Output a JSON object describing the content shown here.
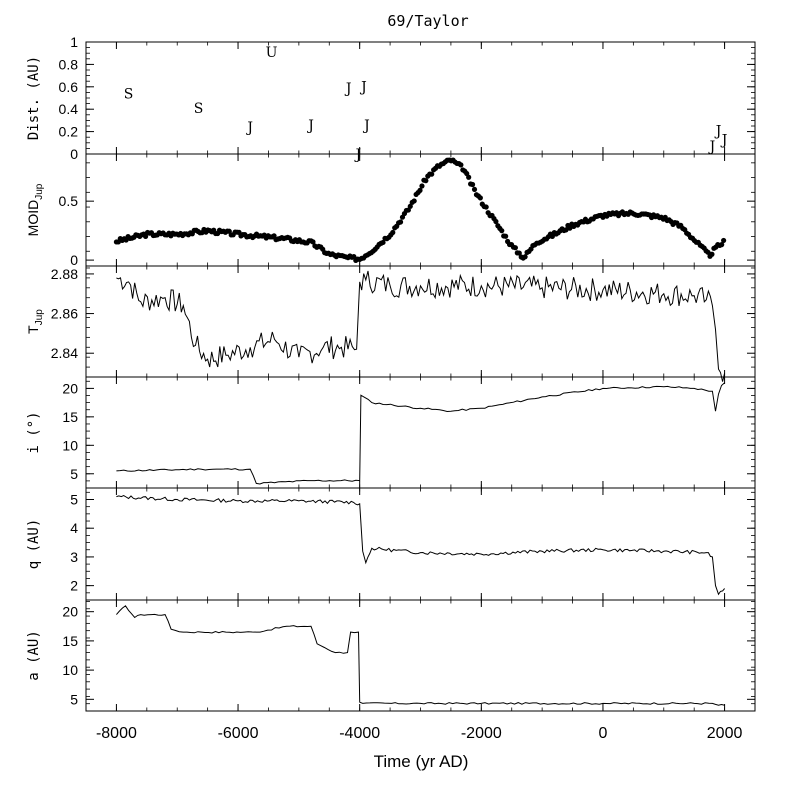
{
  "chart_data": {
    "type": "multi-panel",
    "title": "69/Taylor",
    "xlabel": "Time (yr AD)",
    "xlim": [
      -8500,
      2500
    ],
    "x_ticks": [
      -8000,
      -6000,
      -4000,
      -2000,
      0,
      2000
    ],
    "x_tick_labels": [
      "-8000",
      "-6000",
      "-4000",
      "-2000",
      "0",
      "2000"
    ],
    "panels": [
      {
        "id": "dist",
        "type": "scatter-text",
        "ylabel": "Dist. (AU)",
        "ylim": [
          0,
          1
        ],
        "y_ticks": [
          0,
          0.2,
          0.4,
          0.6,
          0.8,
          1
        ],
        "y_tick_labels": [
          "0",
          "0.2",
          "0.4",
          "0.6",
          "0.8",
          "1"
        ],
        "markers": [
          {
            "label": "S",
            "x": -7800,
            "y": 0.55
          },
          {
            "label": "S",
            "x": -6650,
            "y": 0.42
          },
          {
            "label": "U",
            "x": -5450,
            "y": 0.92
          },
          {
            "label": "J",
            "x": -5800,
            "y": 0.25
          },
          {
            "label": "J",
            "x": -4800,
            "y": 0.27
          },
          {
            "label": "J",
            "x": -4180,
            "y": 0.6
          },
          {
            "label": "J",
            "x": -3930,
            "y": 0.61
          },
          {
            "label": "J",
            "x": -3880,
            "y": 0.27
          },
          {
            "label": "J",
            "x": -4020,
            "y": 0.01
          },
          {
            "label": "J",
            "x": 1800,
            "y": 0.08
          },
          {
            "label": "J",
            "x": 1900,
            "y": 0.22
          },
          {
            "label": "J",
            "x": 2000,
            "y": 0.14
          }
        ]
      },
      {
        "id": "moid",
        "type": "scatter",
        "ylabel": "MOID",
        "ylabel_sub": "Jup",
        "ylim": [
          -0.05,
          0.9
        ],
        "y_ticks": [
          0,
          0.5
        ],
        "y_tick_labels": [
          "0",
          "0.5"
        ],
        "points": [
          [
            -8000,
            0.16
          ],
          [
            -7500,
            0.22
          ],
          [
            -7000,
            0.22
          ],
          [
            -6500,
            0.25
          ],
          [
            -6000,
            0.22
          ],
          [
            -5600,
            0.2
          ],
          [
            -5200,
            0.18
          ],
          [
            -4800,
            0.15
          ],
          [
            -4500,
            0.05
          ],
          [
            -4200,
            0.02
          ],
          [
            -4000,
            0.01
          ],
          [
            -3800,
            0.08
          ],
          [
            -3500,
            0.22
          ],
          [
            -3200,
            0.43
          ],
          [
            -2900,
            0.7
          ],
          [
            -2700,
            0.8
          ],
          [
            -2500,
            0.85
          ],
          [
            -2300,
            0.78
          ],
          [
            -2100,
            0.58
          ],
          [
            -1800,
            0.35
          ],
          [
            -1500,
            0.12
          ],
          [
            -1300,
            0.02
          ],
          [
            -1100,
            0.15
          ],
          [
            -800,
            0.22
          ],
          [
            -500,
            0.3
          ],
          [
            0,
            0.38
          ],
          [
            500,
            0.4
          ],
          [
            1000,
            0.36
          ],
          [
            1300,
            0.28
          ],
          [
            1600,
            0.12
          ],
          [
            1750,
            0.04
          ],
          [
            1850,
            0.1
          ],
          [
            2000,
            0.16
          ]
        ]
      },
      {
        "id": "tjup",
        "type": "line",
        "ylabel": "T",
        "ylabel_sub": "Jup",
        "ylim": [
          2.828,
          2.884
        ],
        "y_ticks": [
          2.84,
          2.86,
          2.88
        ],
        "y_tick_labels": [
          "2.84",
          "2.86",
          "2.88"
        ],
        "series": [
          {
            "x": [
              -8000,
              -7800,
              -7600,
              -7200,
              -6900,
              -6700,
              -6500,
              -6200,
              -5800,
              -5400,
              -5000,
              -4600,
              -4300,
              -4050,
              -4000,
              -3900,
              -3500,
              -3000,
              -2000,
              -1000,
              0,
              1000,
              1500,
              1700,
              1800,
              1850,
              1900,
              2000
            ],
            "y": [
              2.878,
              2.876,
              2.866,
              2.868,
              2.864,
              2.844,
              2.837,
              2.839,
              2.843,
              2.847,
              2.838,
              2.843,
              2.843,
              2.842,
              2.876,
              2.877,
              2.874,
              2.874,
              2.874,
              2.873,
              2.872,
              2.87,
              2.869,
              2.867,
              2.864,
              2.852,
              2.832,
              2.83
            ]
          }
        ]
      },
      {
        "id": "incl",
        "type": "line",
        "ylabel": "i (°)",
        "ylim": [
          2.5,
          22
        ],
        "y_ticks": [
          5,
          10,
          15,
          20
        ],
        "y_tick_labels": [
          "5",
          "10",
          "15",
          "20"
        ],
        "series": [
          {
            "x": [
              -8000,
              -6600,
              -5800,
              -5700,
              -4800,
              -4000,
              -3980,
              -3800,
              -3000,
              -2500,
              -2000,
              -1000,
              0,
              1000,
              1500,
              1800,
              1850,
              1900,
              1950,
              2000
            ],
            "y": [
              5.5,
              5.8,
              5.8,
              3.3,
              3.8,
              3.8,
              18.8,
              17.5,
              16.5,
              16.0,
              16.5,
              18.5,
              20.0,
              20.3,
              20.0,
              19.5,
              16.0,
              19.0,
              20.5,
              21.0
            ]
          }
        ]
      },
      {
        "id": "q",
        "type": "line",
        "ylabel": "q (AU)",
        "ylim": [
          1.5,
          5.4
        ],
        "y_ticks": [
          2,
          3,
          4,
          5
        ],
        "y_tick_labels": [
          "2",
          "3",
          "4",
          "5"
        ],
        "series": [
          {
            "x": [
              -8000,
              -7000,
              -6000,
              -5000,
              -4100,
              -4000,
              -3950,
              -3900,
              -3800,
              -3000,
              -2000,
              -1000,
              0,
              1000,
              1700,
              1800,
              1850,
              1900,
              2000
            ],
            "y": [
              5.1,
              5.0,
              4.95,
              4.95,
              4.9,
              4.85,
              3.2,
              2.8,
              3.3,
              3.15,
              3.1,
              3.2,
              3.25,
              3.2,
              3.15,
              3.0,
              2.0,
              1.7,
              1.9
            ]
          }
        ]
      },
      {
        "id": "a",
        "type": "line",
        "ylabel": "a (AU)",
        "ylim": [
          3,
          22
        ],
        "y_ticks": [
          5,
          10,
          15,
          20
        ],
        "y_tick_labels": [
          "5",
          "10",
          "15",
          "20"
        ],
        "series": [
          {
            "x": [
              -8000,
              -7850,
              -7700,
              -7600,
              -7200,
              -7100,
              -6900,
              -6600,
              -6200,
              -5900,
              -5700,
              -5200,
              -4800,
              -4700,
              -4400,
              -4200,
              -4150,
              -4020,
              -4000,
              -3950,
              -3000,
              -2000,
              0,
              1800,
              1900,
              2000
            ],
            "y": [
              19.5,
              21.0,
              19.0,
              19.5,
              19.5,
              17.0,
              16.5,
              16.5,
              16.5,
              16.5,
              16.5,
              17.5,
              17.5,
              14.5,
              13.0,
              13.0,
              16.5,
              16.5,
              4.5,
              4.3,
              4.3,
              4.3,
              4.3,
              4.3,
              4.0,
              4.0
            ]
          }
        ]
      }
    ]
  }
}
